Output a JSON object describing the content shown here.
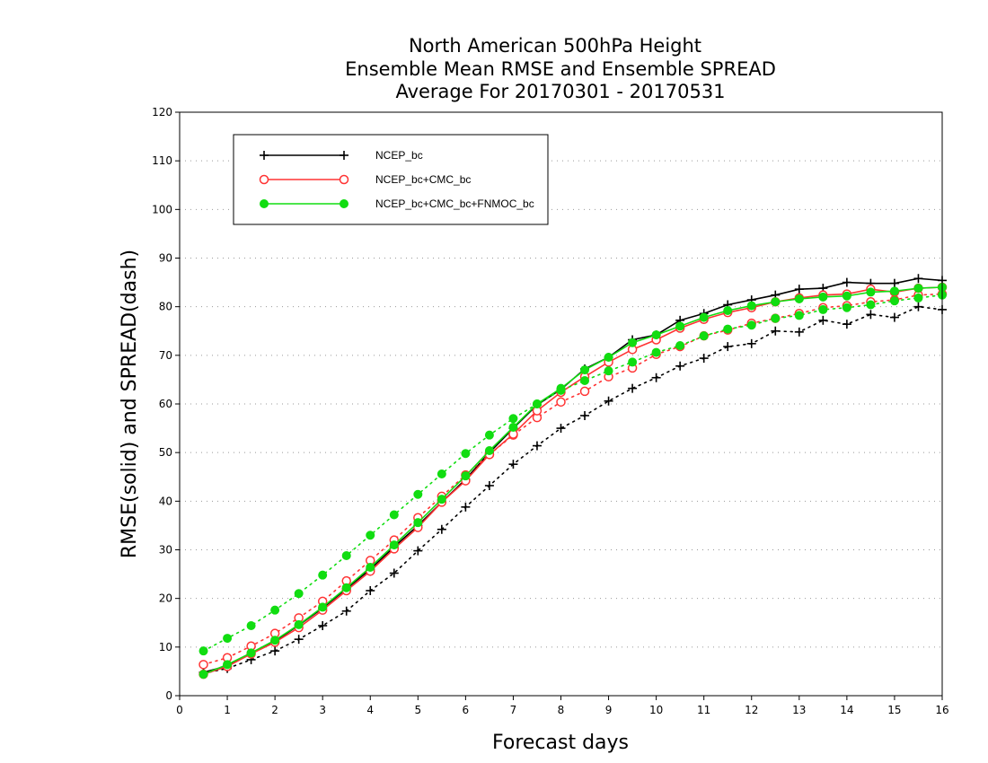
{
  "chart_data": {
    "type": "line",
    "title": [
      "North American 500hPa Height",
      "Ensemble Mean RMSE and Ensemble SPREAD",
      "Average For 20170301 - 20170531"
    ],
    "xlabel": "Forecast days",
    "ylabel": "RMSE(solid) and SPREAD(dash)",
    "xlim": [
      0,
      16
    ],
    "ylim": [
      0,
      120
    ],
    "xticks": [
      0,
      1,
      2,
      3,
      4,
      5,
      6,
      7,
      8,
      9,
      10,
      11,
      12,
      13,
      14,
      15,
      16
    ],
    "yticks": [
      0,
      10,
      20,
      30,
      40,
      50,
      60,
      70,
      80,
      90,
      100,
      110,
      120
    ],
    "grid": true,
    "legend_position": "top-left",
    "x": [
      0.5,
      1.0,
      1.5,
      2.0,
      2.5,
      3.0,
      3.5,
      4.0,
      4.5,
      5.0,
      5.5,
      6.0,
      6.5,
      7.0,
      7.5,
      8.0,
      8.5,
      9.0,
      9.5,
      10.0,
      10.5,
      11.0,
      11.5,
      12.0,
      12.5,
      13.0,
      13.5,
      14.0,
      14.5,
      15.0,
      15.5,
      16.0
    ],
    "series": [
      {
        "name": "NCEP_bc",
        "color": "#000000",
        "marker": "plus",
        "rmse": [
          4.8,
          6.1,
          8.7,
          11.2,
          14.5,
          18.0,
          22.0,
          26.0,
          30.6,
          35.0,
          39.8,
          44.5,
          50.0,
          55.0,
          59.8,
          63.0,
          67.2,
          69.6,
          73.2,
          74.2,
          77.2,
          78.6,
          80.4,
          81.4,
          82.4,
          83.6,
          83.8,
          85.0,
          84.8,
          84.8,
          85.8,
          85.4
        ],
        "spread": [
          4.6,
          5.6,
          7.4,
          9.2,
          11.6,
          14.4,
          17.4,
          21.6,
          25.2,
          29.8,
          34.2,
          38.8,
          43.2,
          47.6,
          51.4,
          55.0,
          57.6,
          60.6,
          63.2,
          65.4,
          67.8,
          69.4,
          71.8,
          72.4,
          75.0,
          74.8,
          77.2,
          76.4,
          78.4,
          77.8,
          80.0,
          79.4
        ]
      },
      {
        "name": "NCEP_bc+CMC_bc",
        "color": "#ff3333",
        "marker": "open-circle",
        "rmse": [
          4.4,
          6.0,
          8.6,
          11.0,
          14.0,
          17.6,
          21.6,
          25.6,
          30.2,
          34.6,
          39.8,
          44.2,
          49.6,
          53.8,
          58.6,
          62.4,
          65.6,
          68.6,
          71.2,
          73.2,
          75.6,
          77.4,
          78.8,
          79.8,
          81.0,
          81.8,
          82.4,
          82.6,
          83.6,
          83.0,
          83.8,
          84.0
        ],
        "spread": [
          6.4,
          7.8,
          10.2,
          12.8,
          16.0,
          19.4,
          23.6,
          27.8,
          32.0,
          36.6,
          41.0,
          45.4,
          49.6,
          53.6,
          57.2,
          60.4,
          62.6,
          65.6,
          67.4,
          70.2,
          71.8,
          74.0,
          75.2,
          76.6,
          77.6,
          78.6,
          79.8,
          80.2,
          81.0,
          81.4,
          82.4,
          82.6
        ]
      },
      {
        "name": "NCEP_bc+CMC_bc+FNMOC_bc",
        "color": "#11dd11",
        "marker": "filled-circle",
        "rmse": [
          4.4,
          6.4,
          8.8,
          11.4,
          14.6,
          18.2,
          22.2,
          26.4,
          31.0,
          35.6,
          40.4,
          45.2,
          50.4,
          55.2,
          60.0,
          63.2,
          67.0,
          69.6,
          72.6,
          74.2,
          76.0,
          77.8,
          79.2,
          80.2,
          81.0,
          81.6,
          82.0,
          82.2,
          83.0,
          83.2,
          83.8,
          84.0
        ],
        "spread": [
          9.2,
          11.8,
          14.4,
          17.6,
          21.0,
          24.8,
          28.8,
          33.0,
          37.2,
          41.4,
          45.6,
          49.8,
          53.6,
          57.0,
          60.0,
          62.8,
          64.8,
          66.8,
          68.6,
          70.6,
          72.0,
          74.0,
          75.4,
          76.2,
          77.6,
          78.2,
          79.4,
          79.8,
          80.4,
          81.2,
          81.8,
          82.4
        ]
      }
    ]
  }
}
